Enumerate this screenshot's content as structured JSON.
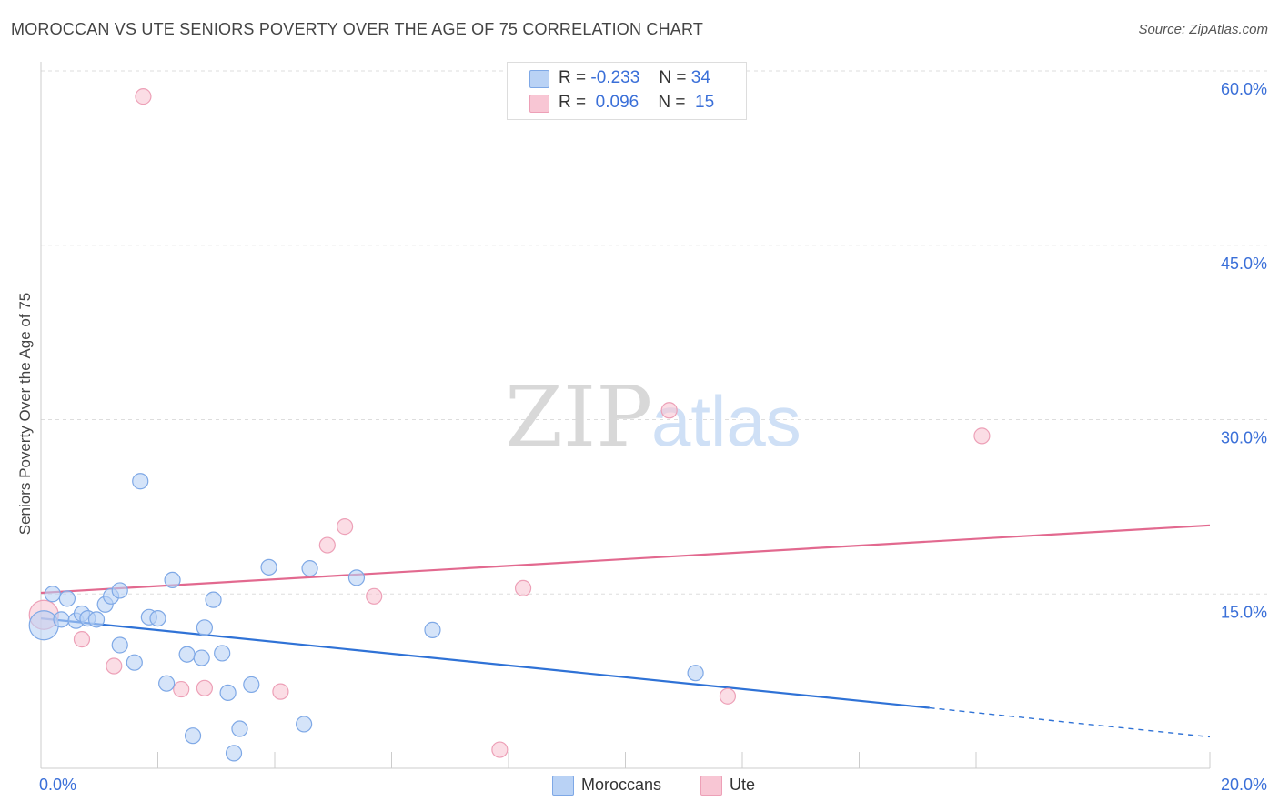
{
  "header": {
    "title": "MOROCCAN VS UTE SENIORS POVERTY OVER THE AGE OF 75 CORRELATION CHART",
    "source": "Source: ZipAtlas.com"
  },
  "watermark": {
    "zip": "ZIP",
    "atlas": "atlas"
  },
  "colors": {
    "blue_fill": "#b9d2f5",
    "blue_stroke": "#7ea8e6",
    "blue_line": "#2f72d6",
    "pink_fill": "#f8c6d4",
    "pink_stroke": "#eda0b7",
    "pink_line": "#e2698f",
    "tick_text": "#3a6fd8",
    "grid": "#dddddd"
  },
  "stats": {
    "blue": {
      "r_label": "R =",
      "r_value": "-0.233",
      "n_label": "N =",
      "n_value": "34"
    },
    "pink": {
      "r_label": "R =",
      "r_value": "0.096",
      "n_label": "N =",
      "n_value": "15"
    }
  },
  "chart_data": {
    "type": "scatter",
    "title": "MOROCCAN VS UTE SENIORS POVERTY OVER THE AGE OF 75 CORRELATION CHART",
    "xlabel": "",
    "ylabel": "Seniors Poverty Over the Age of 75",
    "xlim": [
      0,
      20
    ],
    "ylim": [
      0,
      60
    ],
    "x_ticks": [
      0,
      20
    ],
    "x_tick_labels": [
      "0.0%",
      "20.0%"
    ],
    "y_ticks": [
      15,
      30,
      45,
      60
    ],
    "y_tick_labels": [
      "15.0%",
      "30.0%",
      "45.0%",
      "60.0%"
    ],
    "grid": true,
    "legend_position": "bottom",
    "series": [
      {
        "name": "Moroccans",
        "color": "#7ea8e6",
        "points": [
          {
            "x": 0.05,
            "y": 12.3,
            "big": true
          },
          {
            "x": 0.2,
            "y": 15.0
          },
          {
            "x": 0.35,
            "y": 12.8
          },
          {
            "x": 0.45,
            "y": 14.6
          },
          {
            "x": 0.6,
            "y": 12.7
          },
          {
            "x": 0.7,
            "y": 13.3
          },
          {
            "x": 0.8,
            "y": 12.9
          },
          {
            "x": 0.95,
            "y": 12.8
          },
          {
            "x": 1.1,
            "y": 14.1
          },
          {
            "x": 1.2,
            "y": 14.8
          },
          {
            "x": 1.35,
            "y": 15.3
          },
          {
            "x": 1.35,
            "y": 10.6
          },
          {
            "x": 1.6,
            "y": 9.1
          },
          {
            "x": 1.7,
            "y": 24.7
          },
          {
            "x": 1.85,
            "y": 13.0
          },
          {
            "x": 2.0,
            "y": 12.9
          },
          {
            "x": 2.15,
            "y": 7.3
          },
          {
            "x": 2.25,
            "y": 16.2
          },
          {
            "x": 2.5,
            "y": 9.8
          },
          {
            "x": 2.6,
            "y": 2.8
          },
          {
            "x": 2.75,
            "y": 9.5
          },
          {
            "x": 2.8,
            "y": 12.1
          },
          {
            "x": 2.95,
            "y": 14.5
          },
          {
            "x": 3.1,
            "y": 9.9
          },
          {
            "x": 3.2,
            "y": 6.5
          },
          {
            "x": 3.3,
            "y": 1.3
          },
          {
            "x": 3.4,
            "y": 3.4
          },
          {
            "x": 3.6,
            "y": 7.2
          },
          {
            "x": 3.9,
            "y": 17.3
          },
          {
            "x": 4.5,
            "y": 3.8
          },
          {
            "x": 4.6,
            "y": 17.2
          },
          {
            "x": 5.4,
            "y": 16.4
          },
          {
            "x": 6.7,
            "y": 11.9
          },
          {
            "x": 11.2,
            "y": 8.2
          }
        ]
      },
      {
        "name": "Ute",
        "color": "#eda0b7",
        "points": [
          {
            "x": 0.05,
            "y": 13.2,
            "big": true
          },
          {
            "x": 0.7,
            "y": 11.1
          },
          {
            "x": 1.25,
            "y": 8.8
          },
          {
            "x": 1.75,
            "y": 57.8
          },
          {
            "x": 2.4,
            "y": 6.8
          },
          {
            "x": 2.8,
            "y": 6.9
          },
          {
            "x": 4.1,
            "y": 6.6
          },
          {
            "x": 4.9,
            "y": 19.2
          },
          {
            "x": 5.2,
            "y": 20.8
          },
          {
            "x": 5.7,
            "y": 14.8
          },
          {
            "x": 7.85,
            "y": 1.6
          },
          {
            "x": 8.25,
            "y": 15.5
          },
          {
            "x": 10.75,
            "y": 30.8
          },
          {
            "x": 11.75,
            "y": 6.2
          },
          {
            "x": 16.1,
            "y": 28.6
          }
        ]
      }
    ],
    "trend_lines": [
      {
        "series": "Moroccans",
        "x0": 0,
        "y0": 12.9,
        "x1": 15.2,
        "y1": 5.2,
        "dashed_to_x": 20,
        "dashed_to_y": 2.7
      },
      {
        "series": "Ute",
        "x0": 0,
        "y0": 15.1,
        "x1": 20,
        "y1": 20.9
      }
    ]
  }
}
